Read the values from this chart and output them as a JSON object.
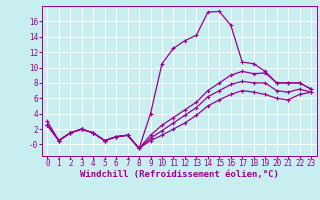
{
  "xlabel": "Windchill (Refroidissement éolien,°C)",
  "ylabel": "",
  "bg_color": "#c8eef0",
  "line_color": "#9b0090",
  "grid_color": "#ffffff",
  "xlim": [
    -0.5,
    23.5
  ],
  "ylim": [
    -1.5,
    18
  ],
  "xticks": [
    0,
    1,
    2,
    3,
    4,
    5,
    6,
    7,
    8,
    9,
    10,
    11,
    12,
    13,
    14,
    15,
    16,
    17,
    18,
    19,
    20,
    21,
    22,
    23
  ],
  "yticks": [
    0,
    2,
    4,
    6,
    8,
    10,
    12,
    14,
    16
  ],
  "ytick_labels": [
    "-0",
    "2",
    "4",
    "6",
    "8",
    "10",
    "12",
    "14",
    "16"
  ],
  "line1": [
    3.0,
    0.5,
    1.5,
    2.0,
    1.5,
    0.5,
    1.0,
    1.2,
    -0.5,
    4.0,
    10.5,
    12.5,
    13.5,
    14.2,
    17.2,
    17.3,
    15.5,
    10.7,
    10.5,
    9.5,
    8.0,
    8.0,
    8.0,
    7.2
  ],
  "line2": [
    2.5,
    0.5,
    1.5,
    2.0,
    1.5,
    0.5,
    1.0,
    1.2,
    -0.5,
    1.2,
    2.5,
    3.5,
    4.5,
    5.5,
    7.0,
    8.0,
    9.0,
    9.5,
    9.2,
    9.3,
    8.0,
    8.0,
    8.0,
    7.2
  ],
  "line3": [
    2.5,
    0.5,
    1.5,
    2.0,
    1.5,
    0.5,
    1.0,
    1.2,
    -0.5,
    0.8,
    1.8,
    2.8,
    3.8,
    4.8,
    6.2,
    7.0,
    7.8,
    8.2,
    8.0,
    8.0,
    7.0,
    6.8,
    7.2,
    6.8
  ],
  "line4": [
    2.5,
    0.5,
    1.5,
    2.0,
    1.5,
    0.5,
    1.0,
    1.2,
    -0.5,
    0.5,
    1.2,
    2.0,
    2.8,
    3.8,
    5.0,
    5.8,
    6.5,
    7.0,
    6.8,
    6.5,
    6.0,
    5.8,
    6.5,
    6.8
  ],
  "marker": "+",
  "markersize": 3,
  "linewidth": 0.9,
  "xlabel_fontsize": 6.5,
  "tick_fontsize": 5.5
}
